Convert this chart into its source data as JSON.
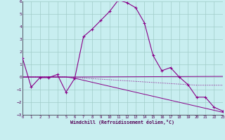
{
  "xlabel": "Windchill (Refroidissement éolien,°C)",
  "background_color": "#c8eef0",
  "grid_color": "#a0ccc8",
  "line_color": "#880088",
  "xlim": [
    0,
    23
  ],
  "ylim": [
    -3,
    6
  ],
  "xticks": [
    0,
    1,
    2,
    3,
    4,
    5,
    6,
    7,
    8,
    9,
    10,
    11,
    12,
    13,
    14,
    15,
    16,
    17,
    18,
    19,
    20,
    21,
    22,
    23
  ],
  "yticks": [
    -3,
    -2,
    -1,
    0,
    1,
    2,
    3,
    4,
    5,
    6
  ],
  "series1_x": [
    0,
    1,
    2,
    3,
    4,
    5,
    6,
    7,
    8,
    9,
    10,
    11,
    12,
    13,
    14,
    15,
    16,
    17,
    18,
    19,
    20,
    21,
    22,
    23
  ],
  "series1_y": [
    1.5,
    -0.8,
    -0.05,
    -0.05,
    0.2,
    -1.2,
    -0.1,
    3.2,
    3.8,
    4.5,
    5.2,
    6.1,
    5.9,
    5.5,
    4.3,
    1.7,
    0.5,
    0.75,
    0.0,
    -0.6,
    -1.6,
    -1.6,
    -2.4,
    -2.7
  ],
  "series2_x": [
    0,
    5,
    6,
    23
  ],
  "series2_y": [
    0.0,
    0.0,
    0.0,
    0.05
  ],
  "series3_x": [
    0,
    5,
    6,
    23
  ],
  "series3_y": [
    0.0,
    0.0,
    -0.1,
    -2.8
  ],
  "series4_x": [
    0,
    5,
    20,
    23
  ],
  "series4_y": [
    0.0,
    0.0,
    -0.65,
    -0.65
  ]
}
